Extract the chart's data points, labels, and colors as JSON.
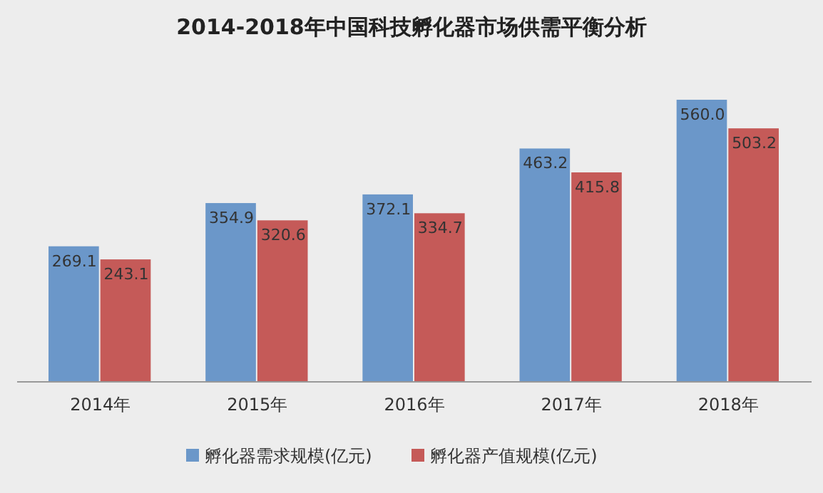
{
  "chart_data": {
    "type": "bar",
    "title": "2014-2018年中国科技孵化器市场供需平衡分析",
    "categories": [
      "2014年",
      "2015年",
      "2016年",
      "2017年",
      "2018年"
    ],
    "series": [
      {
        "name": "孵化器需求规模(亿元)",
        "color": "#6b97c9",
        "values": [
          269.1,
          354.9,
          372.1,
          463.2,
          560.0
        ],
        "value_labels": [
          "269.1",
          "354.9",
          "372.1",
          "463.2",
          "560.0"
        ]
      },
      {
        "name": "孵化器产值规模(亿元)",
        "color": "#c55a58",
        "values": [
          243.1,
          320.6,
          334.7,
          415.8,
          503.2
        ],
        "value_labels": [
          "243.1",
          "320.6",
          "334.7",
          "415.8",
          "503.2"
        ]
      }
    ],
    "legend": "bottom",
    "grid": false
  }
}
